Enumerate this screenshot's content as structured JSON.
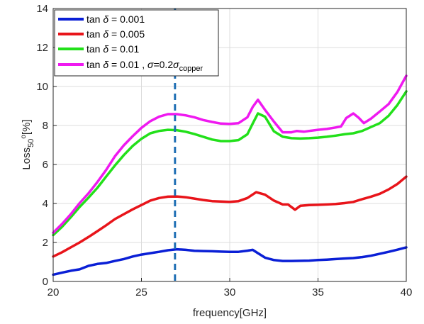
{
  "chart_data": {
    "type": "line",
    "xlabel": "frequency[GHz]",
    "ylabel": {
      "main": "Loss",
      "sub": "50",
      "sup": "o",
      "unit": "[%]"
    },
    "xlim": [
      20,
      40
    ],
    "ylim": [
      0,
      14
    ],
    "xticks": [
      20,
      25,
      30,
      35,
      40
    ],
    "yticks": [
      0,
      2,
      4,
      6,
      8,
      10,
      12,
      14
    ],
    "grid": true,
    "legend_position": "top-left",
    "vline": {
      "x": 26.9,
      "color": "#1f6fb4",
      "style": "dashed"
    },
    "series": [
      {
        "legend": {
          "prefix": "tan ",
          "greek": "δ",
          "suffix": " = 0.001"
        },
        "color": "#0a1fd6",
        "points": [
          [
            20,
            0.35
          ],
          [
            20.5,
            0.45
          ],
          [
            21,
            0.55
          ],
          [
            21.5,
            0.62
          ],
          [
            22,
            0.8
          ],
          [
            22.5,
            0.9
          ],
          [
            23,
            0.95
          ],
          [
            23.5,
            1.05
          ],
          [
            24,
            1.15
          ],
          [
            24.5,
            1.28
          ],
          [
            25,
            1.38
          ],
          [
            25.5,
            1.45
          ],
          [
            26,
            1.52
          ],
          [
            26.5,
            1.6
          ],
          [
            27,
            1.65
          ],
          [
            27.5,
            1.62
          ],
          [
            28,
            1.57
          ],
          [
            28.5,
            1.56
          ],
          [
            29,
            1.55
          ],
          [
            29.5,
            1.53
          ],
          [
            30,
            1.52
          ],
          [
            30.5,
            1.52
          ],
          [
            31,
            1.58
          ],
          [
            31.3,
            1.62
          ],
          [
            31.6,
            1.45
          ],
          [
            32,
            1.22
          ],
          [
            32.5,
            1.1
          ],
          [
            33,
            1.05
          ],
          [
            33.5,
            1.05
          ],
          [
            34,
            1.06
          ],
          [
            34.5,
            1.07
          ],
          [
            35,
            1.1
          ],
          [
            35.5,
            1.12
          ],
          [
            36,
            1.15
          ],
          [
            36.5,
            1.18
          ],
          [
            37,
            1.2
          ],
          [
            37.5,
            1.25
          ],
          [
            38,
            1.32
          ],
          [
            38.5,
            1.42
          ],
          [
            39,
            1.52
          ],
          [
            39.5,
            1.63
          ],
          [
            40,
            1.75
          ]
        ]
      },
      {
        "legend": {
          "prefix": "tan ",
          "greek": "δ",
          "suffix": " = 0.005"
        },
        "color": "#e8141a",
        "points": [
          [
            20,
            1.28
          ],
          [
            20.5,
            1.5
          ],
          [
            21,
            1.75
          ],
          [
            21.5,
            2.0
          ],
          [
            22,
            2.28
          ],
          [
            22.5,
            2.58
          ],
          [
            23,
            2.88
          ],
          [
            23.5,
            3.2
          ],
          [
            24,
            3.45
          ],
          [
            24.5,
            3.7
          ],
          [
            25,
            3.92
          ],
          [
            25.5,
            4.15
          ],
          [
            26,
            4.28
          ],
          [
            26.5,
            4.35
          ],
          [
            27,
            4.36
          ],
          [
            27.5,
            4.32
          ],
          [
            28,
            4.25
          ],
          [
            28.5,
            4.18
          ],
          [
            29,
            4.12
          ],
          [
            29.5,
            4.1
          ],
          [
            30,
            4.08
          ],
          [
            30.5,
            4.12
          ],
          [
            31,
            4.28
          ],
          [
            31.5,
            4.58
          ],
          [
            32,
            4.45
          ],
          [
            32.5,
            4.15
          ],
          [
            33,
            3.95
          ],
          [
            33.3,
            3.95
          ],
          [
            33.7,
            3.68
          ],
          [
            34,
            3.88
          ],
          [
            34.5,
            3.92
          ],
          [
            35,
            3.93
          ],
          [
            35.5,
            3.95
          ],
          [
            36,
            3.97
          ],
          [
            36.5,
            4.02
          ],
          [
            37,
            4.08
          ],
          [
            37.5,
            4.22
          ],
          [
            38,
            4.35
          ],
          [
            38.5,
            4.5
          ],
          [
            39,
            4.72
          ],
          [
            39.5,
            5.0
          ],
          [
            40,
            5.38
          ]
        ]
      },
      {
        "legend": {
          "prefix": "tan ",
          "greek": "δ",
          "suffix": " = 0.01"
        },
        "color": "#22e01a",
        "points": [
          [
            20,
            2.38
          ],
          [
            20.5,
            2.8
          ],
          [
            21,
            3.3
          ],
          [
            21.5,
            3.82
          ],
          [
            22,
            4.3
          ],
          [
            22.5,
            4.8
          ],
          [
            23,
            5.38
          ],
          [
            23.5,
            5.95
          ],
          [
            24,
            6.48
          ],
          [
            24.5,
            6.95
          ],
          [
            25,
            7.32
          ],
          [
            25.5,
            7.6
          ],
          [
            26,
            7.72
          ],
          [
            26.5,
            7.78
          ],
          [
            27,
            7.76
          ],
          [
            27.5,
            7.68
          ],
          [
            28,
            7.56
          ],
          [
            28.5,
            7.42
          ],
          [
            29,
            7.28
          ],
          [
            29.5,
            7.2
          ],
          [
            30,
            7.2
          ],
          [
            30.5,
            7.25
          ],
          [
            31,
            7.55
          ],
          [
            31.3,
            8.1
          ],
          [
            31.6,
            8.62
          ],
          [
            32,
            8.45
          ],
          [
            32.5,
            7.7
          ],
          [
            33,
            7.42
          ],
          [
            33.5,
            7.35
          ],
          [
            34,
            7.33
          ],
          [
            34.5,
            7.35
          ],
          [
            35,
            7.38
          ],
          [
            35.5,
            7.42
          ],
          [
            36,
            7.48
          ],
          [
            36.5,
            7.55
          ],
          [
            37,
            7.6
          ],
          [
            37.5,
            7.72
          ],
          [
            38,
            7.92
          ],
          [
            38.5,
            8.12
          ],
          [
            39,
            8.5
          ],
          [
            39.5,
            9.05
          ],
          [
            40,
            9.75
          ]
        ]
      },
      {
        "legend": {
          "prefix": "tan ",
          "greek": "δ",
          "suffix": " = 0.01 , ",
          "sigma": "σ",
          "sigma_eq": "=0.2",
          "sigma2": "σ",
          "sub": "copper"
        },
        "color": "#ef19f0",
        "points": [
          [
            20,
            2.5
          ],
          [
            20.5,
            2.95
          ],
          [
            21,
            3.45
          ],
          [
            21.5,
            4.02
          ],
          [
            22,
            4.52
          ],
          [
            22.5,
            5.1
          ],
          [
            23,
            5.72
          ],
          [
            23.5,
            6.42
          ],
          [
            24,
            6.98
          ],
          [
            24.5,
            7.45
          ],
          [
            25,
            7.88
          ],
          [
            25.5,
            8.22
          ],
          [
            26,
            8.45
          ],
          [
            26.5,
            8.58
          ],
          [
            27,
            8.58
          ],
          [
            27.5,
            8.52
          ],
          [
            28,
            8.42
          ],
          [
            28.5,
            8.28
          ],
          [
            29,
            8.18
          ],
          [
            29.5,
            8.1
          ],
          [
            30,
            8.08
          ],
          [
            30.5,
            8.12
          ],
          [
            31,
            8.42
          ],
          [
            31.3,
            8.95
          ],
          [
            31.6,
            9.32
          ],
          [
            32,
            8.8
          ],
          [
            32.5,
            8.2
          ],
          [
            33,
            7.65
          ],
          [
            33.5,
            7.65
          ],
          [
            33.8,
            7.72
          ],
          [
            34.2,
            7.68
          ],
          [
            34.5,
            7.72
          ],
          [
            35,
            7.78
          ],
          [
            35.5,
            7.82
          ],
          [
            36,
            7.9
          ],
          [
            36.3,
            7.95
          ],
          [
            36.6,
            8.38
          ],
          [
            37,
            8.62
          ],
          [
            37.3,
            8.4
          ],
          [
            37.6,
            8.12
          ],
          [
            38,
            8.35
          ],
          [
            38.5,
            8.72
          ],
          [
            39,
            9.1
          ],
          [
            39.5,
            9.72
          ],
          [
            40,
            10.55
          ]
        ]
      }
    ]
  }
}
